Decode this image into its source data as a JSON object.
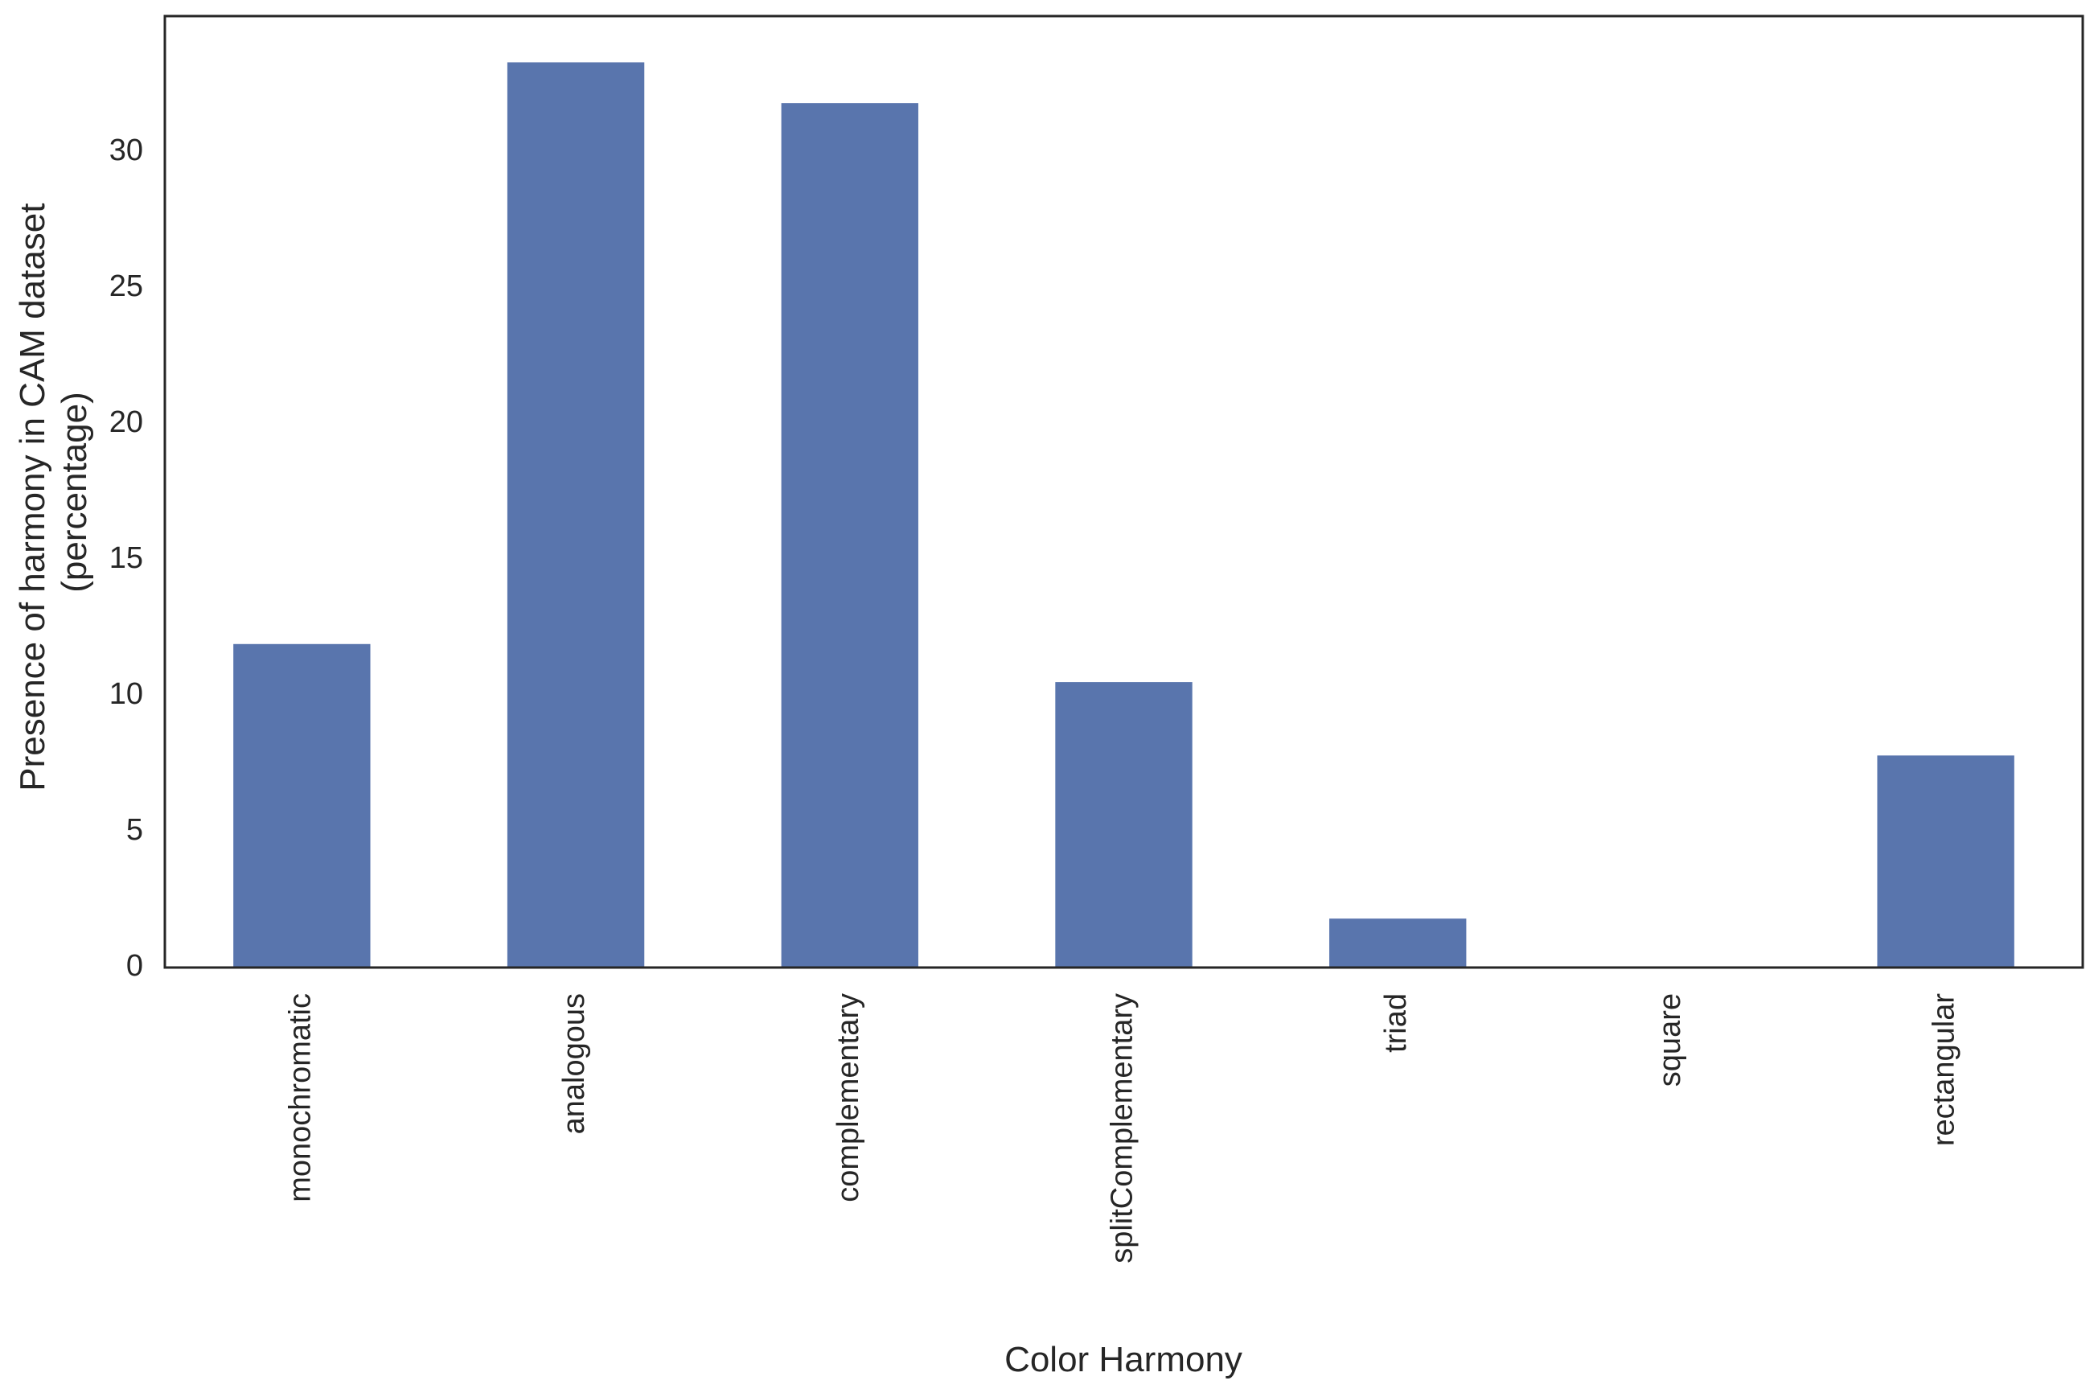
{
  "chart_data": {
    "type": "bar",
    "title": "",
    "xlabel": "Color Harmony",
    "ylabel_lines": [
      "Presence of harmony in CAM dataset",
      "(percentage)"
    ],
    "categories": [
      "monochromatic",
      "analogous",
      "complementary",
      "splitComplementary",
      "triad",
      "square",
      "rectangular"
    ],
    "values": [
      11.9,
      33.3,
      31.8,
      10.5,
      1.8,
      0.0,
      7.8
    ],
    "ylim": [
      0,
      35
    ],
    "yticks": [
      0,
      5,
      10,
      15,
      20,
      25,
      30
    ],
    "grid": false,
    "legend": "none",
    "bar_color": "#5975ad",
    "axis_color": "#262626"
  }
}
